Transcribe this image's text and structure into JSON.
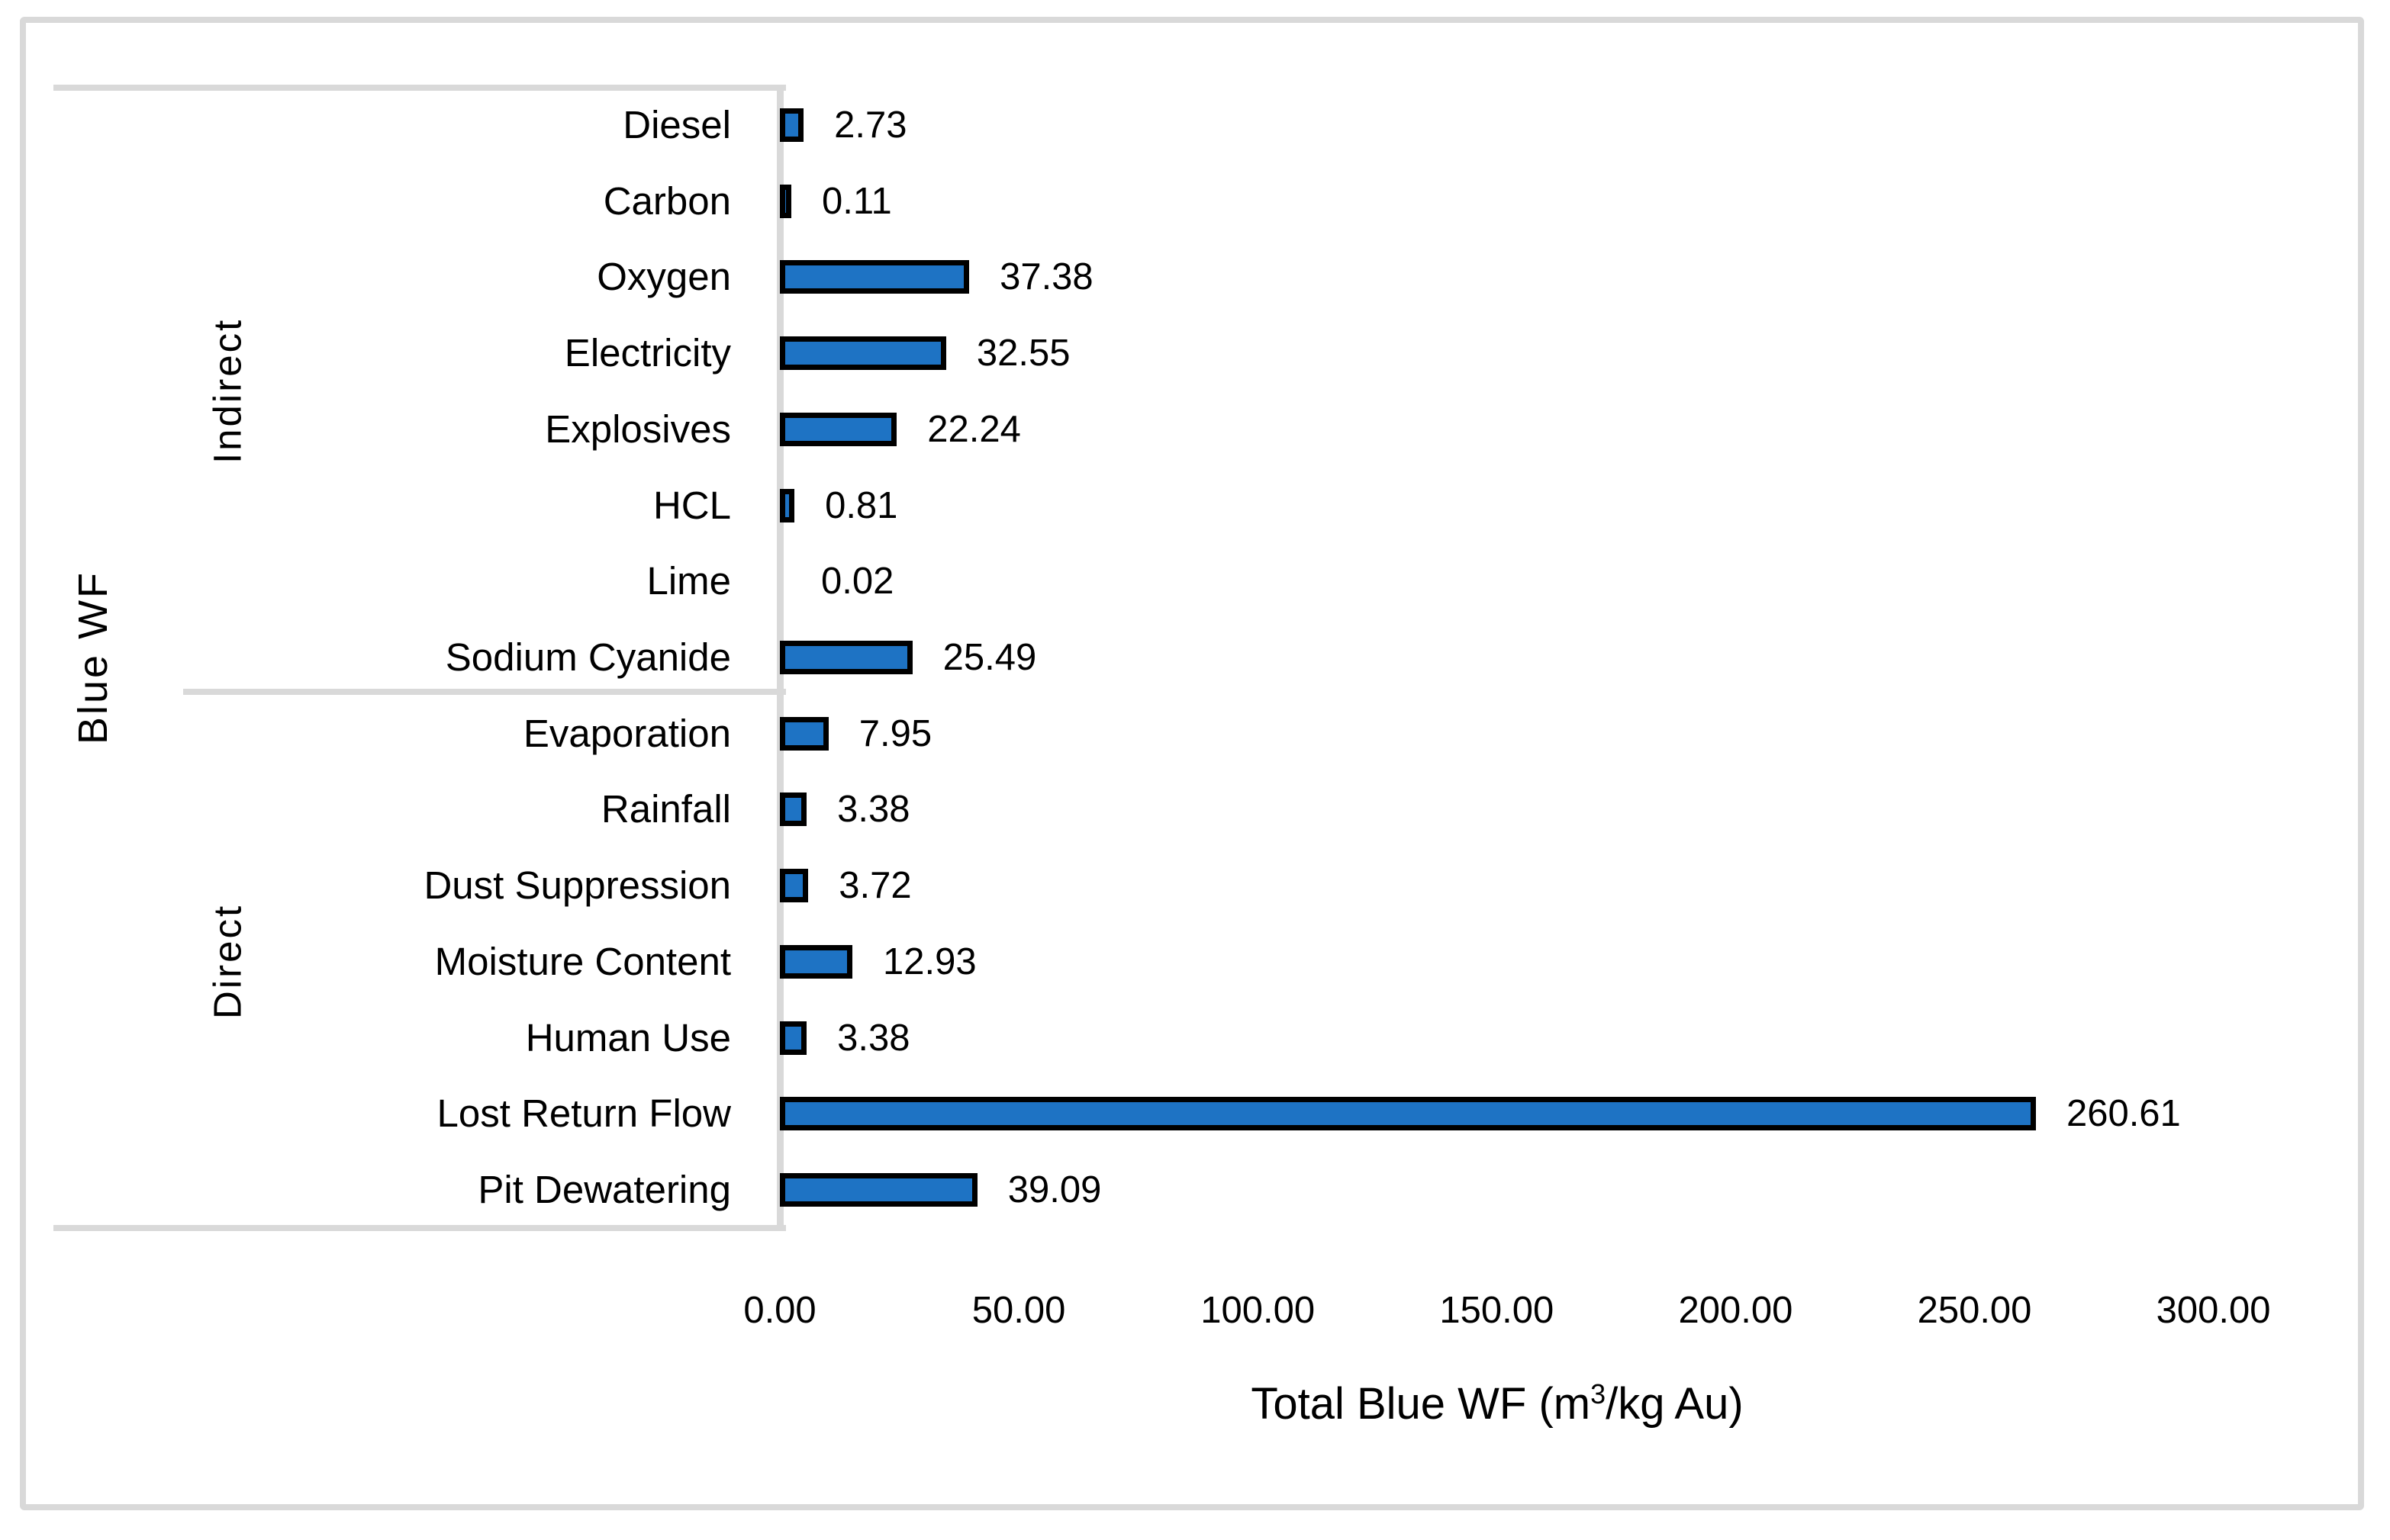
{
  "chart_data": {
    "type": "bar",
    "orientation": "horizontal",
    "ylabel": "Blue WF",
    "xlabel": "Total Blue WF (m³/kg Au)",
    "xlabel_parts": {
      "pre": "Total Blue WF (m",
      "sup": "3",
      "post": "/kg Au)"
    },
    "xlim": [
      0,
      300
    ],
    "x_ticks": [
      0,
      50,
      100,
      150,
      200,
      250,
      300
    ],
    "x_tick_labels": [
      "0.00",
      "50.00",
      "100.00",
      "150.00",
      "200.00",
      "250.00",
      "300.00"
    ],
    "grid": false,
    "legend": "none",
    "bar_color": "#1E73C4",
    "bar_border_color": "#000000",
    "axis_line_color": "#D9D9D9",
    "groups": [
      {
        "name": "Indirect",
        "categories": [
          "Diesel",
          "Carbon",
          "Oxygen",
          "Electricity",
          "Explosives",
          "HCL",
          "Lime",
          "Sodium Cyanide"
        ]
      },
      {
        "name": "Direct",
        "categories": [
          "Evaporation",
          "Rainfall",
          "Dust Suppression",
          "Moisture Content",
          "Human Use",
          "Lost Return Flow",
          "Pit Dewatering"
        ]
      }
    ],
    "items": [
      {
        "group": "Indirect",
        "label": "Diesel",
        "value": 2.73,
        "value_label": "2.73"
      },
      {
        "group": "Indirect",
        "label": "Carbon",
        "value": 0.11,
        "value_label": "0.11"
      },
      {
        "group": "Indirect",
        "label": "Oxygen",
        "value": 37.38,
        "value_label": "37.38"
      },
      {
        "group": "Indirect",
        "label": "Electricity",
        "value": 32.55,
        "value_label": "32.55"
      },
      {
        "group": "Indirect",
        "label": "Explosives",
        "value": 22.24,
        "value_label": "22.24"
      },
      {
        "group": "Indirect",
        "label": "HCL",
        "value": 0.81,
        "value_label": "0.81"
      },
      {
        "group": "Indirect",
        "label": "Lime",
        "value": 0.02,
        "value_label": "0.02"
      },
      {
        "group": "Indirect",
        "label": "Sodium Cyanide",
        "value": 25.49,
        "value_label": "25.49"
      },
      {
        "group": "Direct",
        "label": "Evaporation",
        "value": 7.95,
        "value_label": "7.95"
      },
      {
        "group": "Direct",
        "label": "Rainfall",
        "value": 3.38,
        "value_label": "3.38"
      },
      {
        "group": "Direct",
        "label": "Dust Suppression",
        "value": 3.72,
        "value_label": "3.72"
      },
      {
        "group": "Direct",
        "label": "Moisture Content",
        "value": 12.93,
        "value_label": "12.93"
      },
      {
        "group": "Direct",
        "label": "Human Use",
        "value": 3.38,
        "value_label": "3.38"
      },
      {
        "group": "Direct",
        "label": "Lost Return Flow",
        "value": 260.61,
        "value_label": "260.61"
      },
      {
        "group": "Direct",
        "label": "Pit Dewatering",
        "value": 39.09,
        "value_label": "39.09"
      }
    ]
  }
}
